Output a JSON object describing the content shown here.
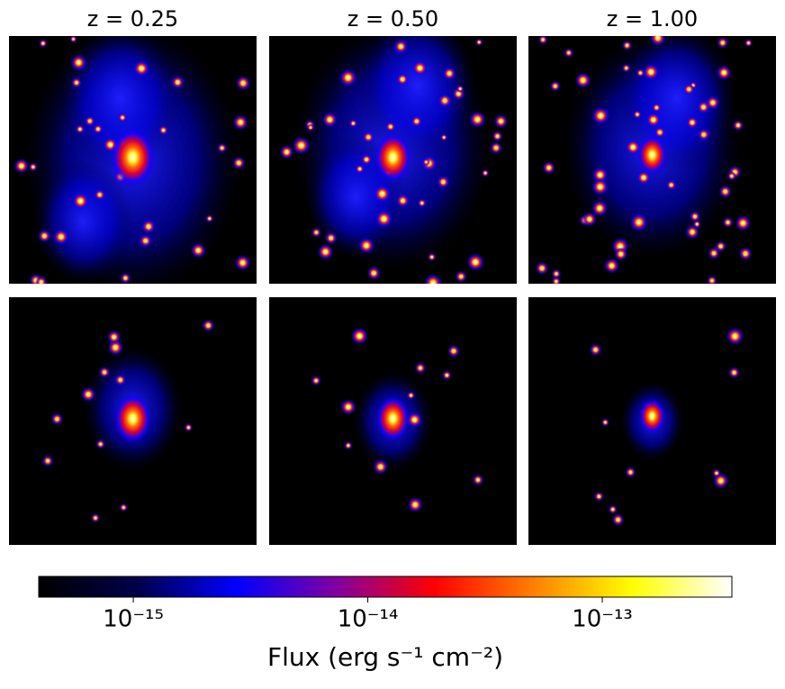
{
  "chart_data": {
    "type": "image-grid",
    "columns": [
      "z = 0.25",
      "z = 0.50",
      "z = 1.00"
    ],
    "colorbar": {
      "label": "Flux (erg s⁻¹ cm⁻²)",
      "scale": "log",
      "xlim": [
        3.95e-16,
        3.57e-13
      ],
      "xticks": [
        {
          "value": 1e-15,
          "label": "10⁻¹⁵"
        },
        {
          "value": 1e-14,
          "label": "10⁻¹⁴"
        },
        {
          "value": 1e-13,
          "label": "10⁻¹³"
        }
      ],
      "colors": [
        "#000000",
        "#00004a",
        "#0000ff",
        "#8000a0",
        "#ff0000",
        "#ff8000",
        "#ffff00",
        "#ffffff"
      ]
    }
  }
}
